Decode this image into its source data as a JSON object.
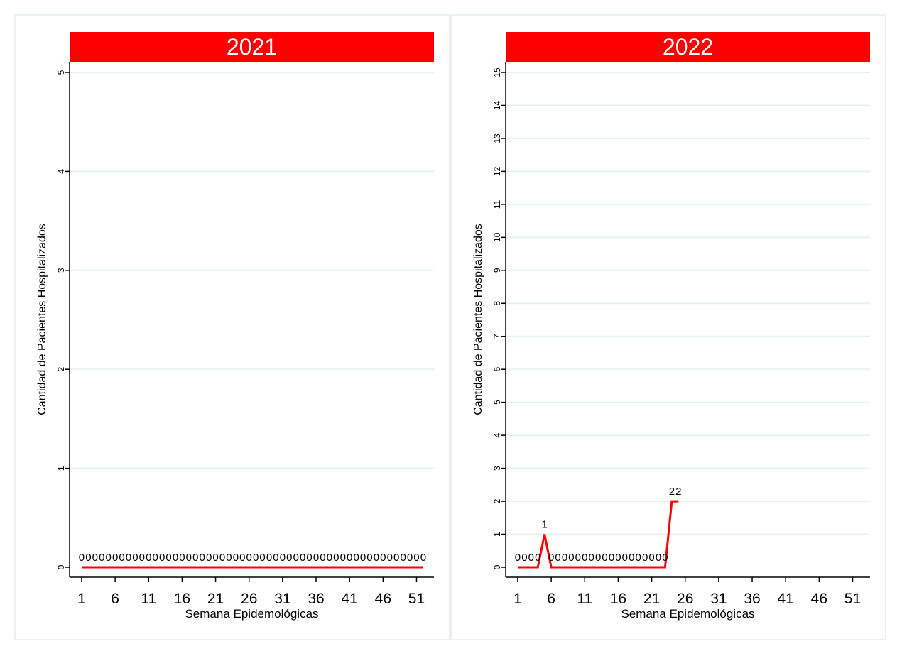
{
  "colors": {
    "accent": "#ff0000",
    "grid": "#e8f0f0",
    "axis": "#000000",
    "panel_border": "#e6ecec"
  },
  "chart_data": [
    {
      "type": "line",
      "title": "2021",
      "xlabel": "Semana Epidemológicas",
      "ylabel": "Cantidad de Pacientes Hospitalizados",
      "x_ticks": [
        1,
        6,
        11,
        16,
        21,
        26,
        31,
        36,
        41,
        46,
        51
      ],
      "y_ticks": [
        0,
        1,
        2,
        3,
        4,
        5
      ],
      "xlim": [
        -0.8,
        53.6
      ],
      "ylim": [
        0,
        5
      ],
      "grid": true,
      "series": [
        {
          "color": "#ff0000",
          "x": [
            1,
            2,
            3,
            4,
            5,
            6,
            7,
            8,
            9,
            10,
            11,
            12,
            13,
            14,
            15,
            16,
            17,
            18,
            19,
            20,
            21,
            22,
            23,
            24,
            25,
            26,
            27,
            28,
            29,
            30,
            31,
            32,
            33,
            34,
            35,
            36,
            37,
            38,
            39,
            40,
            41,
            42,
            43,
            44,
            45,
            46,
            47,
            48,
            49,
            50,
            51,
            52
          ],
          "values": [
            0,
            0,
            0,
            0,
            0,
            0,
            0,
            0,
            0,
            0,
            0,
            0,
            0,
            0,
            0,
            0,
            0,
            0,
            0,
            0,
            0,
            0,
            0,
            0,
            0,
            0,
            0,
            0,
            0,
            0,
            0,
            0,
            0,
            0,
            0,
            0,
            0,
            0,
            0,
            0,
            0,
            0,
            0,
            0,
            0,
            0,
            0,
            0,
            0,
            0,
            0,
            0
          ],
          "data_labels": [
            "0",
            "0",
            "0",
            "0",
            "0",
            "0",
            "0",
            "0",
            "0",
            "0",
            "0",
            "0",
            "0",
            "0",
            "0",
            "0",
            "0",
            "0",
            "0",
            "0",
            "0",
            "0",
            "0",
            "0",
            "0",
            "0",
            "0",
            "0",
            "0",
            "0",
            "0",
            "0",
            "0",
            "0",
            "0",
            "0",
            "0",
            "0",
            "0",
            "0",
            "0",
            "0",
            "0",
            "0",
            "0",
            "0",
            "0",
            "0",
            "0",
            "0",
            "0",
            "0"
          ]
        }
      ]
    },
    {
      "type": "line",
      "title": "2022",
      "xlabel": "Semana Epidemológicas",
      "ylabel": "Cantidad de Pacientes Hospitalizados",
      "x_ticks": [
        1,
        6,
        11,
        16,
        21,
        26,
        31,
        36,
        41,
        46,
        51
      ],
      "y_ticks": [
        0,
        1,
        2,
        3,
        4,
        5,
        6,
        7,
        8,
        9,
        10,
        11,
        12,
        13,
        14,
        15
      ],
      "xlim": [
        -0.8,
        53.6
      ],
      "ylim": [
        0,
        15
      ],
      "grid": true,
      "series": [
        {
          "color": "#ff0000",
          "x": [
            1,
            2,
            3,
            4,
            5,
            6,
            7,
            8,
            9,
            10,
            11,
            12,
            13,
            14,
            15,
            16,
            17,
            18,
            19,
            20,
            21,
            22,
            23,
            24,
            25
          ],
          "values": [
            0,
            0,
            0,
            0,
            1,
            0,
            0,
            0,
            0,
            0,
            0,
            0,
            0,
            0,
            0,
            0,
            0,
            0,
            0,
            0,
            0,
            0,
            0,
            2,
            2
          ],
          "data_labels": [
            "0",
            "0",
            "0",
            "0",
            "1",
            "0",
            "0",
            "0",
            "0",
            "0",
            "0",
            "0",
            "0",
            "0",
            "0",
            "0",
            "0",
            "0",
            "0",
            "0",
            "0",
            "0",
            "0",
            "2",
            "2"
          ]
        }
      ]
    }
  ]
}
